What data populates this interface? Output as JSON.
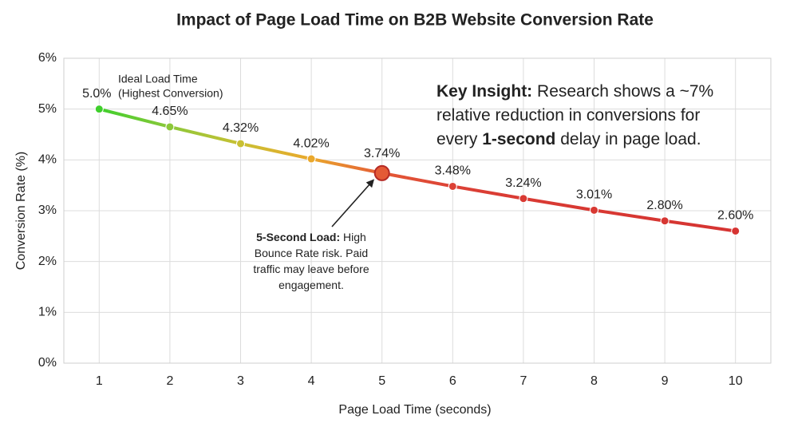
{
  "chart_data": {
    "type": "line",
    "title": "Impact of Page Load Time on B2B Website Conversion Rate",
    "x_label": "Page Load Time (seconds)",
    "y_label": "Conversion Rate (%)",
    "x": [
      1,
      2,
      3,
      4,
      5,
      6,
      7,
      8,
      9,
      10
    ],
    "values": [
      5,
      4.65,
      4.32,
      4.02,
      3.74,
      3.48,
      3.24,
      3.01,
      2.8,
      2.6
    ],
    "value_labels": [
      "5.0%",
      "4.65%",
      "4.32%",
      "4.02%",
      "3.74%",
      "3.48%",
      "3.24%",
      "3.01%",
      "2.80%",
      "2.60%"
    ],
    "point_colors": [
      "#3fcf2c",
      "#8cc83a",
      "#c9c033",
      "#eaa82c",
      "#e45a36",
      "#dc4136",
      "#d93a33",
      "#d83832",
      "#d63632",
      "#d63432"
    ],
    "xlim": [
      0.5,
      10.5
    ],
    "xticks": [
      1,
      2,
      3,
      4,
      5,
      6,
      7,
      8,
      9,
      10
    ],
    "ylim": [
      0,
      6
    ],
    "yticks": [
      {
        "value": 0,
        "label": "0%"
      },
      {
        "value": 1,
        "label": "1%"
      },
      {
        "value": 2,
        "label": "2%"
      },
      {
        "value": 3,
        "label": "3%"
      },
      {
        "value": 4,
        "label": "4%"
      },
      {
        "value": 5,
        "label": "5%"
      },
      {
        "value": 6,
        "label": "6%"
      }
    ],
    "grid": true,
    "annotations": {
      "ideal": {
        "lines": [
          "Ideal Load Time",
          "(Highest Conversion)"
        ]
      },
      "insight": {
        "lines": [
          [
            {
              "text": "Key Insight:",
              "bold": true
            },
            {
              "text": " Research shows a ~7%",
              "bold": false
            }
          ],
          [
            {
              "text": "relative reduction in conversions for",
              "bold": false
            }
          ],
          [
            {
              "text": "every ",
              "bold": false
            },
            {
              "text": "1-second",
              "bold": true
            },
            {
              "text": " delay in page load.",
              "bold": false
            }
          ]
        ]
      },
      "callout": {
        "target_x": 5,
        "lines": [
          [
            {
              "text": "5-Second Load:",
              "bold": true
            },
            {
              "text": " High",
              "bold": false
            }
          ],
          [
            {
              "text": "Bounce Rate risk. Paid",
              "bold": false
            }
          ],
          [
            {
              "text": "traffic may leave before",
              "bold": false
            }
          ],
          [
            {
              "text": "engagement.",
              "bold": false
            }
          ]
        ]
      }
    }
  }
}
